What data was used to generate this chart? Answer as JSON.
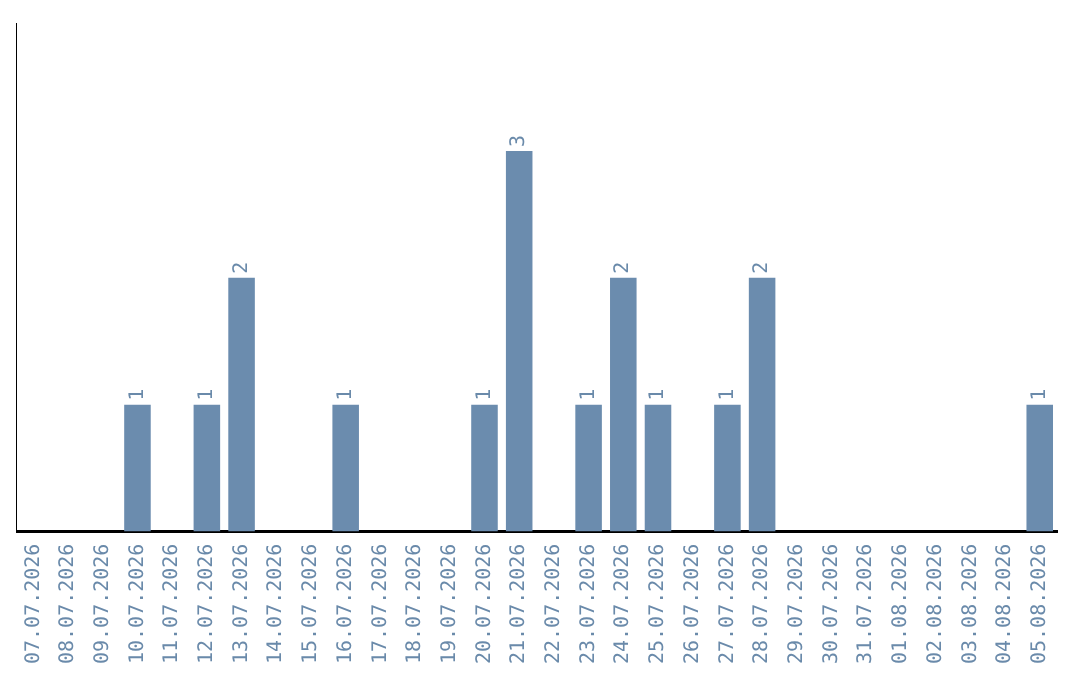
{
  "chart_data": {
    "type": "bar",
    "categories": [
      "07.07.2026",
      "08.07.2026",
      "09.07.2026",
      "10.07.2026",
      "11.07.2026",
      "12.07.2026",
      "13.07.2026",
      "14.07.2026",
      "15.07.2026",
      "16.07.2026",
      "17.07.2026",
      "18.07.2026",
      "19.07.2026",
      "20.07.2026",
      "21.07.2026",
      "22.07.2026",
      "23.07.2026",
      "24.07.2026",
      "25.07.2026",
      "26.07.2026",
      "27.07.2026",
      "28.07.2026",
      "29.07.2026",
      "30.07.2026",
      "31.07.2026",
      "01.08.2026",
      "02.08.2026",
      "03.08.2026",
      "04.08.2026",
      "05.08.2026"
    ],
    "values": [
      0,
      0,
      0,
      1,
      0,
      1,
      2,
      0,
      0,
      1,
      0,
      0,
      0,
      1,
      3,
      0,
      1,
      2,
      1,
      0,
      1,
      2,
      0,
      0,
      0,
      0,
      0,
      0,
      0,
      1
    ],
    "value_labels": [
      null,
      null,
      null,
      "1",
      null,
      "1",
      "2",
      null,
      null,
      "1",
      null,
      null,
      null,
      "1",
      "3",
      null,
      "1",
      "2",
      "1",
      null,
      "1",
      "2",
      null,
      null,
      null,
      null,
      null,
      null,
      null,
      "1"
    ],
    "color": "#6b8cae",
    "tick_labels": "x",
    "grid": false,
    "legend": false
  }
}
